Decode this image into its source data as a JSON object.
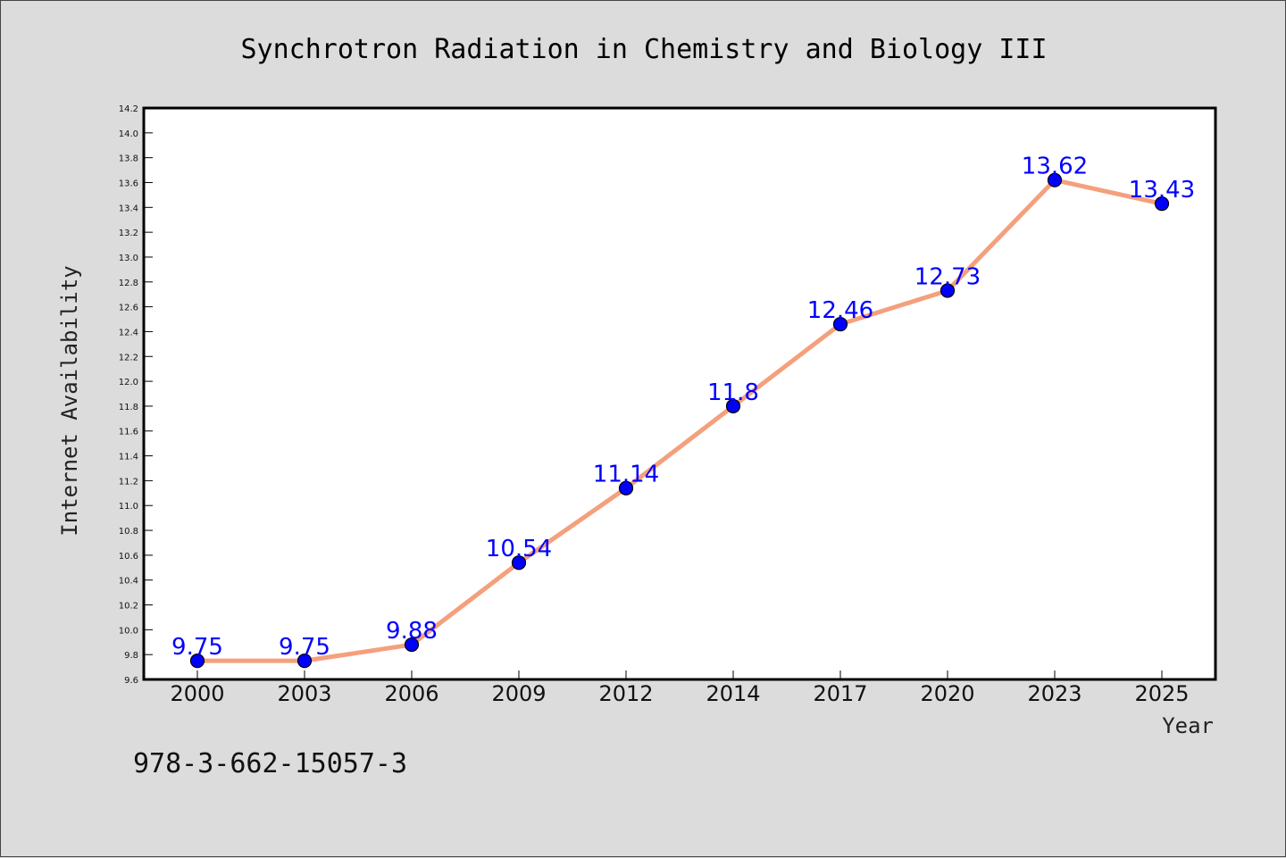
{
  "chart_data": {
    "type": "line",
    "title": "Synchrotron Radiation in Chemistry and Biology III",
    "xlabel": "Year",
    "ylabel": "Internet Availability",
    "categories": [
      "2000",
      "2003",
      "2006",
      "2009",
      "2012",
      "2014",
      "2017",
      "2020",
      "2023",
      "2025"
    ],
    "values": [
      9.75,
      9.75,
      9.88,
      10.54,
      11.14,
      11.8,
      12.46,
      12.73,
      13.62,
      13.43
    ],
    "data_labels": [
      "9.75",
      "9.75",
      "9.88",
      "10.54",
      "11.14",
      "11.8",
      "12.46",
      "12.73",
      "13.62",
      "13.43"
    ],
    "ylim": [
      9.6,
      14.2
    ],
    "yticks": [
      "9.6",
      "9.8",
      "10.0",
      "10.2",
      "10.4",
      "10.6",
      "10.8",
      "11.0",
      "11.2",
      "11.4",
      "11.6",
      "11.8",
      "12.0",
      "12.2",
      "12.4",
      "12.6",
      "12.8",
      "13.0",
      "13.2",
      "13.4",
      "13.6",
      "13.8",
      "14.0",
      "14.2"
    ],
    "grid": false,
    "line_color": "#f4a07c",
    "marker_color": "#0000ff",
    "label_color": "#0000ff",
    "plot_background": "#ffffff",
    "figure_background": "#dcdcdc"
  },
  "footer": {
    "isbn": "978-3-662-15057-3"
  }
}
